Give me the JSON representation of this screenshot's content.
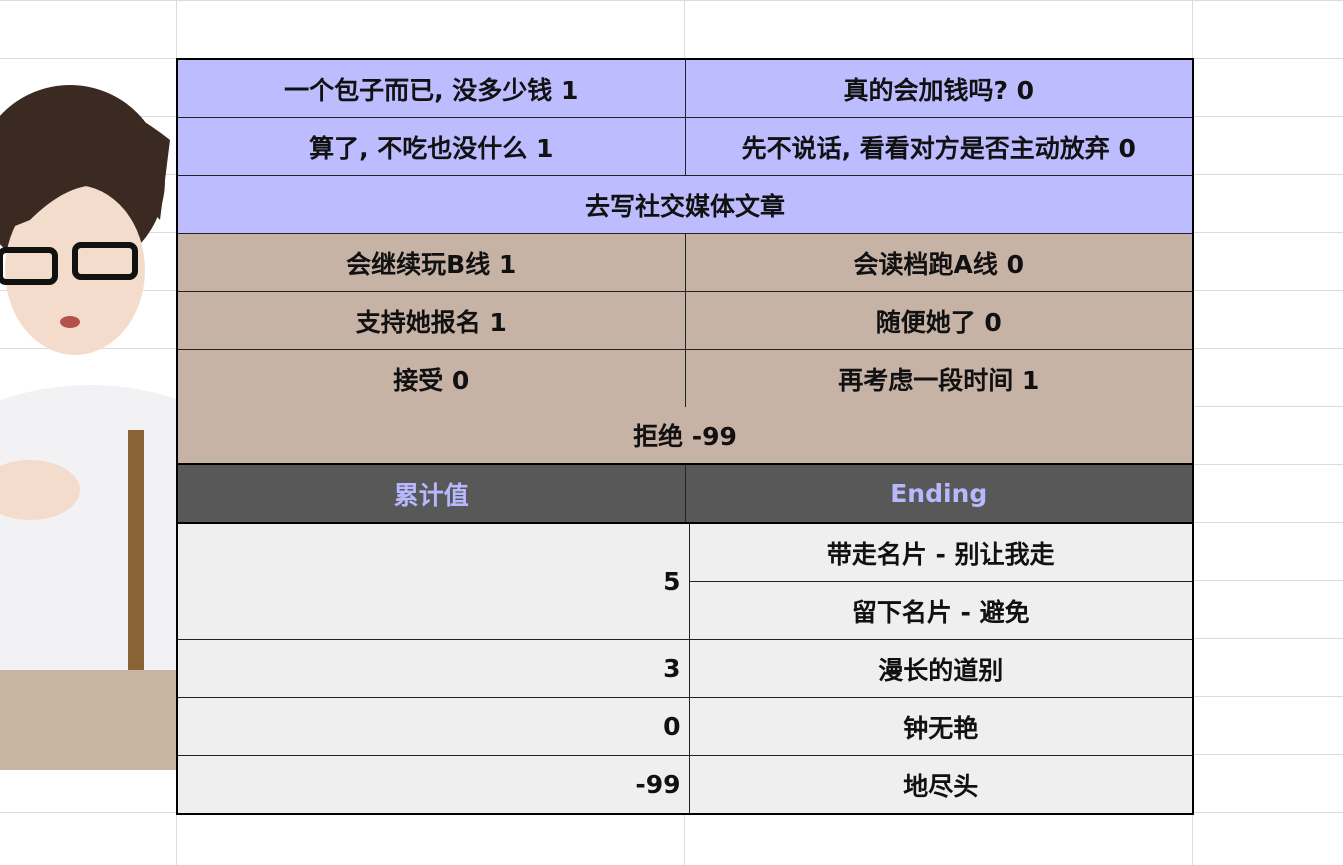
{
  "choices_blue": [
    [
      "一个包子而已, 没多少钱 1",
      "真的会加钱吗? 0"
    ],
    [
      "算了, 不吃也没什么 1",
      "先不说话, 看看对方是否主动放弃 0"
    ]
  ],
  "blue_merged": "去写社交媒体文章",
  "choices_tan": [
    [
      "会继续玩B线 1",
      "会读档跑A线 0"
    ],
    [
      "支持她报名 1",
      "随便她了 0"
    ],
    [
      "接受 0",
      "再考虑一段时间 1"
    ]
  ],
  "tan_merged": "拒绝 -99",
  "header": {
    "col1": "累计值",
    "col2": "Ending"
  },
  "endings": [
    {
      "value": "5",
      "names": [
        "带走名片 - 别让我走",
        "留下名片 - 避免"
      ]
    },
    {
      "value": "3",
      "names": [
        "漫长的道别"
      ]
    },
    {
      "value": "0",
      "names": [
        "钟无艳"
      ]
    },
    {
      "value": "-99",
      "names": [
        "地尽头"
      ]
    }
  ],
  "colors": {
    "blue": "#bcbcff",
    "tan": "#c7b2a6",
    "header_bg": "#585858",
    "header_text": "#b8b8ff",
    "light": "#efefef"
  }
}
